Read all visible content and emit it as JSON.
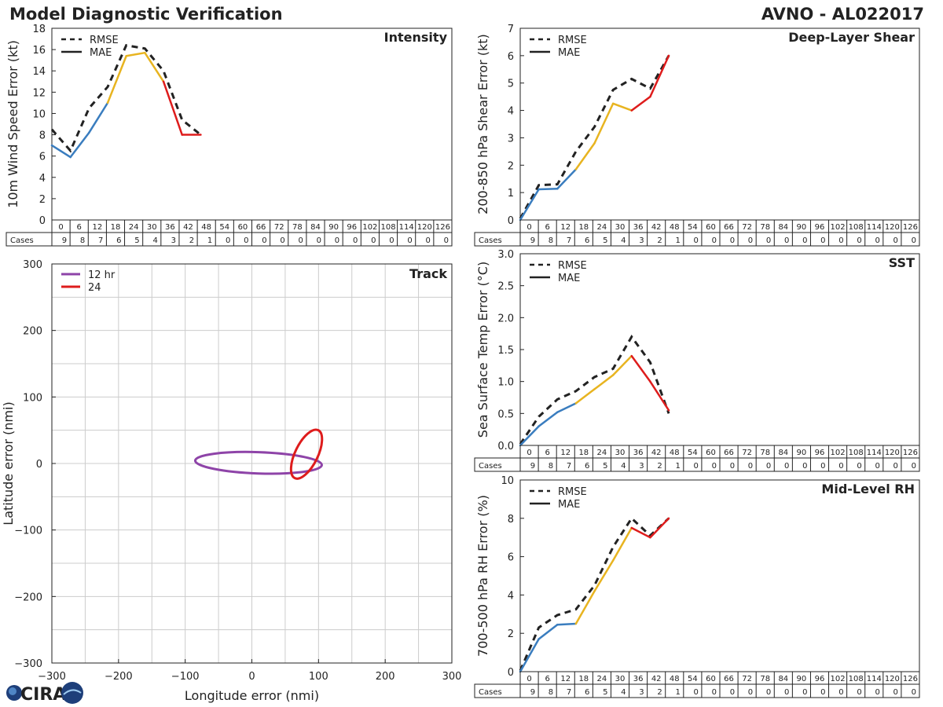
{
  "title": "Model Diagnostic Verification",
  "storm": "AVNO - AL022017",
  "logo_text": "CIRA",
  "colors": {
    "seg_early": "#3a7dbf",
    "seg_mid": "#e8b420",
    "seg_late": "#de1c1c",
    "rmse": "#222222",
    "ring12": "#8e44a8",
    "ring24": "#de1c1c",
    "grid": "#cccccc"
  },
  "table": {
    "cases_label": "Cases",
    "hours": [
      "0",
      "6",
      "12",
      "18",
      "24",
      "30",
      "36",
      "42",
      "48",
      "54",
      "60",
      "66",
      "72",
      "78",
      "84",
      "90",
      "96",
      "102",
      "108",
      "114",
      "120",
      "126"
    ],
    "cases": [
      "9",
      "8",
      "7",
      "6",
      "5",
      "4",
      "3",
      "2",
      "1",
      "0",
      "0",
      "0",
      "0",
      "0",
      "0",
      "0",
      "0",
      "0",
      "0",
      "0",
      "0",
      "0"
    ]
  },
  "chart_data": [
    {
      "id": "intensity",
      "type": "line",
      "title": "Intensity",
      "ylabel": "10m Wind Speed Error (kt)",
      "xlabel": "",
      "ylim": [
        0,
        18
      ],
      "yticks": [
        0,
        2,
        4,
        6,
        8,
        10,
        12,
        14,
        16,
        18
      ],
      "ytick_labels": [
        "0",
        "2",
        "4",
        "6",
        "8",
        "10",
        "12",
        "14",
        "16",
        "18"
      ],
      "legend": [
        "RMSE",
        "MAE"
      ],
      "legend_position": "top-left",
      "series": [
        {
          "name": "RMSE",
          "x": [
            0,
            6,
            12,
            18,
            24,
            30,
            36,
            42,
            48
          ],
          "values": [
            8.5,
            6.5,
            10.5,
            12.5,
            16.4,
            16.1,
            14.0,
            9.4,
            8.0
          ]
        },
        {
          "name": "MAE",
          "x": [
            0,
            6,
            12,
            18,
            24,
            30,
            36,
            42,
            48
          ],
          "values": [
            7.0,
            5.9,
            8.2,
            11.0,
            15.4,
            15.7,
            13.0,
            8.0,
            8.0
          ]
        }
      ]
    },
    {
      "id": "shear",
      "type": "line",
      "title": "Deep-Layer Shear",
      "ylabel": "200-850 hPa Shear Error (kt)",
      "xlabel": "",
      "ylim": [
        0,
        7
      ],
      "yticks": [
        0,
        1,
        2,
        3,
        4,
        5,
        6,
        7
      ],
      "ytick_labels": [
        "0",
        "1",
        "2",
        "3",
        "4",
        "5",
        "6",
        "7"
      ],
      "legend": [
        "RMSE",
        "MAE"
      ],
      "legend_position": "top-left",
      "series": [
        {
          "name": "RMSE",
          "x": [
            0,
            6,
            12,
            18,
            24,
            30,
            36,
            42,
            48
          ],
          "values": [
            0.05,
            1.27,
            1.3,
            2.5,
            3.4,
            4.75,
            5.15,
            4.8,
            6.0
          ]
        },
        {
          "name": "MAE",
          "x": [
            0,
            6,
            12,
            18,
            24,
            30,
            36,
            42,
            48
          ],
          "values": [
            0.0,
            1.12,
            1.14,
            1.85,
            2.8,
            4.25,
            4.0,
            4.5,
            6.0
          ]
        }
      ]
    },
    {
      "id": "sst",
      "type": "line",
      "title": "SST",
      "ylabel": "Sea Surface Temp Error (°C)",
      "xlabel": "",
      "ylim": [
        0,
        3.0
      ],
      "yticks": [
        0,
        0.5,
        1.0,
        1.5,
        2.0,
        2.5,
        3.0
      ],
      "ytick_labels": [
        "0.0",
        "0.5",
        "1.0",
        "1.5",
        "2.0",
        "2.5",
        "3.0"
      ],
      "legend": [
        "RMSE",
        "MAE"
      ],
      "legend_position": "top-left",
      "series": [
        {
          "name": "RMSE",
          "x": [
            0,
            6,
            12,
            18,
            24,
            30,
            36,
            42,
            48
          ],
          "values": [
            0.02,
            0.45,
            0.72,
            0.85,
            1.07,
            1.2,
            1.7,
            1.3,
            0.5
          ]
        },
        {
          "name": "MAE",
          "x": [
            0,
            6,
            12,
            18,
            24,
            30,
            36,
            42,
            48
          ],
          "values": [
            0.0,
            0.3,
            0.52,
            0.66,
            0.88,
            1.1,
            1.4,
            1.0,
            0.55
          ]
        }
      ]
    },
    {
      "id": "rh",
      "type": "line",
      "title": "Mid-Level RH",
      "ylabel": "700-500 hPa RH Error (%)",
      "xlabel": "",
      "ylim": [
        0,
        10
      ],
      "yticks": [
        0,
        2,
        4,
        6,
        8,
        10
      ],
      "ytick_labels": [
        "0",
        "2",
        "4",
        "6",
        "8",
        "10"
      ],
      "legend": [
        "RMSE",
        "MAE"
      ],
      "legend_position": "top-left",
      "series": [
        {
          "name": "RMSE",
          "x": [
            0,
            6,
            12,
            18,
            24,
            30,
            36,
            42,
            48
          ],
          "values": [
            0.05,
            2.3,
            2.95,
            3.25,
            4.5,
            6.5,
            8.0,
            7.1,
            8.0
          ]
        },
        {
          "name": "MAE",
          "x": [
            0,
            6,
            12,
            18,
            24,
            30,
            36,
            42,
            48
          ],
          "values": [
            0.0,
            1.7,
            2.45,
            2.5,
            4.2,
            5.8,
            7.5,
            7.0,
            8.0
          ]
        }
      ]
    },
    {
      "id": "track",
      "type": "scatter",
      "title": "Track",
      "xlabel": "Longitude error (nmi)",
      "ylabel": "Latitude error (nmi)",
      "xlim": [
        -300,
        300
      ],
      "ylim": [
        -300,
        300
      ],
      "xticks": [
        -300,
        -200,
        -100,
        0,
        100,
        200,
        300
      ],
      "xtick_labels": [
        "−300",
        "−200",
        "−100",
        "0",
        "100",
        "200",
        "300"
      ],
      "yticks": [
        -300,
        -200,
        -100,
        0,
        100,
        200,
        300
      ],
      "ytick_labels": [
        "−300",
        "−200",
        "−100",
        "0",
        "100",
        "200",
        "300"
      ],
      "grid_step": 50,
      "grid": true,
      "legend": [
        "12 hr",
        "24"
      ],
      "legend_position": "top-left",
      "ellipses": [
        {
          "name": "12 hr",
          "cx": 10,
          "cy": 1,
          "rx": 95,
          "ry": 16,
          "rotation_deg": -2
        },
        {
          "name": "24",
          "cx": 82,
          "cy": 14,
          "rx": 40,
          "ry": 17,
          "rotation_deg": 64
        }
      ]
    }
  ]
}
